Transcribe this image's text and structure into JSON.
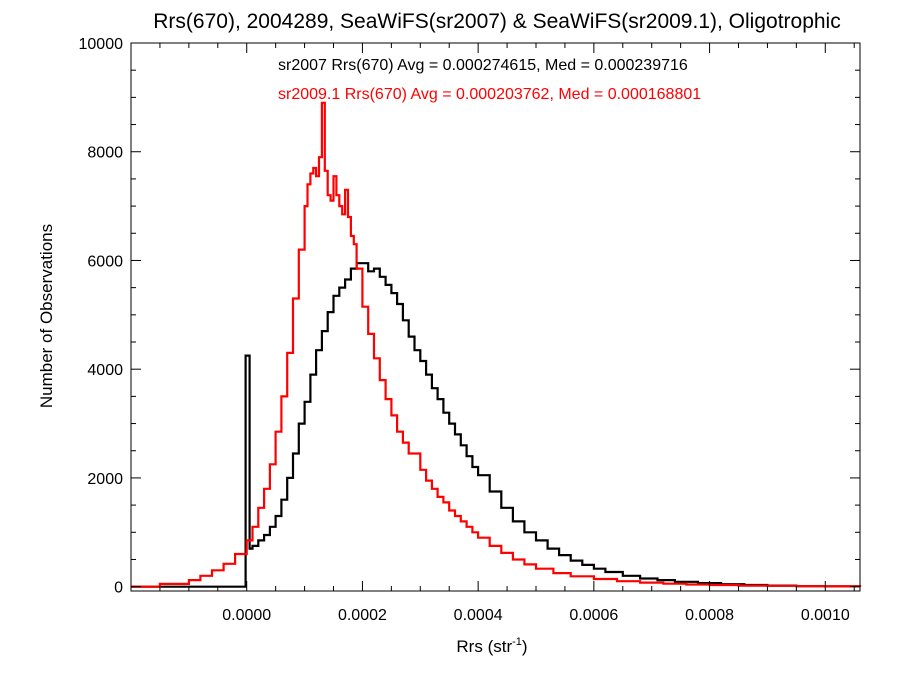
{
  "chart_data": {
    "type": "line",
    "title": "Rrs(670), 2004289, SeaWiFS(sr2007) & SeaWiFS(sr2009.1), Oligotrophic",
    "xlabel_main": "Rrs (str",
    "xlabel_sup": "-1",
    "xlabel_close": ")",
    "ylabel": "Number of Observations",
    "xlim": [
      -0.0002,
      0.00106
    ],
    "ylim": [
      -80,
      10000
    ],
    "xticks": [
      0.0,
      0.0002,
      0.0004,
      0.0006,
      0.0008,
      0.001
    ],
    "xtick_labels": [
      "0.0000",
      "0.0002",
      "0.0004",
      "0.0006",
      "0.0008",
      "0.0010"
    ],
    "yticks": [
      0,
      2000,
      4000,
      6000,
      8000,
      10000
    ],
    "ytick_labels": [
      "0",
      "2000",
      "4000",
      "6000",
      "8000",
      "10000"
    ],
    "grid": false,
    "annotations": [
      {
        "text": "sr2007 Rrs(670) Avg = 0.000274615, Med = 0.000239716",
        "color": "#000000"
      },
      {
        "text": "sr2009.1 Rrs(670) Avg = 0.000203762, Med = 0.000168801",
        "color": "#ff0000"
      }
    ],
    "series": [
      {
        "color": "#000000",
        "x": [
          -0.0002,
          -5e-06,
          -2e-06,
          0.0,
          5e-06,
          1e-05,
          2e-05,
          3e-05,
          4e-05,
          5e-05,
          6e-05,
          7e-05,
          8e-05,
          9e-05,
          0.0001,
          0.00011,
          0.00012,
          0.00013,
          0.00014,
          0.00015,
          0.00016,
          0.00017,
          0.00018,
          0.00019,
          0.0002,
          0.00021,
          0.00022,
          0.00023,
          0.00024,
          0.00025,
          0.00026,
          0.00027,
          0.00028,
          0.00029,
          0.0003,
          0.00031,
          0.00032,
          0.00033,
          0.00034,
          0.00035,
          0.00036,
          0.00037,
          0.00038,
          0.00039,
          0.0004,
          0.00042,
          0.00044,
          0.00046,
          0.00048,
          0.0005,
          0.00052,
          0.00054,
          0.00056,
          0.00058,
          0.0006,
          0.00062,
          0.00065,
          0.00068,
          0.00071,
          0.00074,
          0.00078,
          0.00082,
          0.00086,
          0.0009,
          0.00095,
          0.001,
          0.00106
        ],
        "y": [
          0,
          0,
          4250,
          4250,
          700,
          750,
          850,
          950,
          1100,
          1300,
          1600,
          2000,
          2450,
          3000,
          3400,
          3900,
          4350,
          4700,
          5050,
          5350,
          5500,
          5650,
          5850,
          5950,
          5950,
          5800,
          5850,
          5700,
          5550,
          5400,
          5200,
          4900,
          4600,
          4350,
          4150,
          3900,
          3650,
          3450,
          3200,
          3000,
          2800,
          2600,
          2400,
          2200,
          2050,
          1750,
          1450,
          1200,
          1000,
          850,
          700,
          580,
          480,
          400,
          330,
          270,
          200,
          150,
          120,
          90,
          65,
          45,
          30,
          20,
          10,
          5,
          0
        ]
      },
      {
        "color": "#ff0000",
        "x": [
          -0.0002,
          -0.00015,
          -0.0001,
          -8e-05,
          -6e-05,
          -4e-05,
          -2e-05,
          0.0,
          1e-05,
          2e-05,
          3e-05,
          4e-05,
          5e-05,
          6e-05,
          7e-05,
          8e-05,
          9e-05,
          0.0001,
          0.000105,
          0.00011,
          0.000115,
          0.00012,
          0.000125,
          0.00013,
          0.000135,
          0.00014,
          0.000145,
          0.00015,
          0.000155,
          0.00016,
          0.000165,
          0.00017,
          0.000175,
          0.00018,
          0.000185,
          0.00019,
          0.0002,
          0.00021,
          0.00022,
          0.00023,
          0.00024,
          0.00025,
          0.00026,
          0.00027,
          0.00028,
          0.00029,
          0.0003,
          0.00031,
          0.00032,
          0.00033,
          0.00034,
          0.00035,
          0.00036,
          0.00037,
          0.00038,
          0.00039,
          0.0004,
          0.00042,
          0.00044,
          0.00046,
          0.00048,
          0.0005,
          0.00053,
          0.00056,
          0.0006,
          0.00064,
          0.00068,
          0.00072,
          0.00076,
          0.0008,
          0.00085,
          0.0009,
          0.00095,
          0.001,
          0.00106
        ],
        "y": [
          0,
          50,
          120,
          200,
          300,
          420,
          600,
          850,
          1100,
          1450,
          1800,
          2250,
          2850,
          3500,
          4300,
          5300,
          6200,
          7000,
          7400,
          7600,
          7700,
          7550,
          7900,
          8900,
          7650,
          7200,
          7100,
          7550,
          7200,
          7000,
          6850,
          7300,
          6800,
          6450,
          6300,
          5850,
          5150,
          4650,
          4200,
          3800,
          3450,
          3150,
          2850,
          2650,
          2450,
          2450,
          2150,
          1950,
          1800,
          1650,
          1550,
          1400,
          1300,
          1200,
          1100,
          1000,
          900,
          750,
          620,
          500,
          410,
          330,
          250,
          190,
          140,
          100,
          75,
          55,
          40,
          30,
          20,
          15,
          10,
          5,
          0
        ]
      }
    ]
  }
}
